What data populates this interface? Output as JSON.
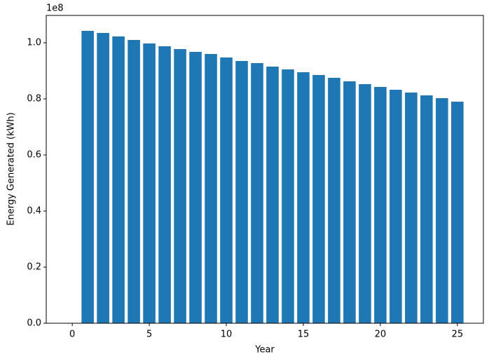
{
  "chart_data": {
    "type": "bar",
    "x_label": "Year",
    "y_label": "Energy Generated (kWh)",
    "y_offset_text": "1e8",
    "x": [
      1,
      2,
      3,
      4,
      5,
      6,
      7,
      8,
      9,
      10,
      11,
      12,
      13,
      14,
      15,
      16,
      17,
      18,
      19,
      20,
      21,
      22,
      23,
      24,
      25
    ],
    "values": [
      104250000,
      103500000,
      102250000,
      101000000,
      99750000,
      98750000,
      97750000,
      96750000,
      96000000,
      94750000,
      93500000,
      92750000,
      91500000,
      90500000,
      89500000,
      88500000,
      87500000,
      86250000,
      85250000,
      84250000,
      83250000,
      82250000,
      81250000,
      80250000,
      79000000
    ],
    "bar_width": 0.8,
    "color": "#1f77b4",
    "xlim": [
      -1.69,
      26.69
    ],
    "xticks": [
      0,
      5,
      10,
      15,
      20,
      25
    ],
    "ylim": [
      0,
      109750000
    ],
    "yticks": [
      {
        "value": 0,
        "label": "0.0"
      },
      {
        "value": 20000000,
        "label": "0.2"
      },
      {
        "value": 40000000,
        "label": "0.4"
      },
      {
        "value": 60000000,
        "label": "0.6"
      },
      {
        "value": 80000000,
        "label": "0.8"
      },
      {
        "value": 100000000,
        "label": "1.0"
      }
    ],
    "grid": false
  }
}
